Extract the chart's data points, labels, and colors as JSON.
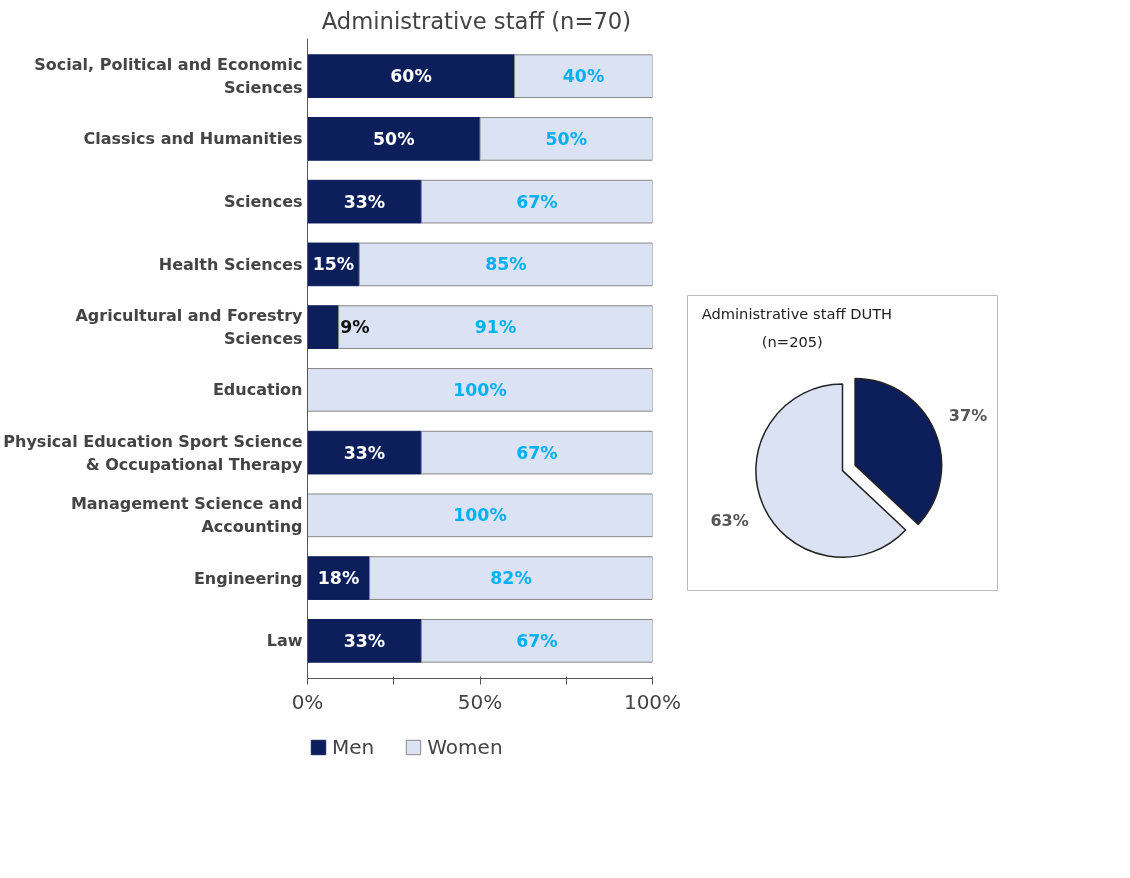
{
  "chart_data": [
    {
      "type": "bar",
      "title": "Administrative staff  (n=70)",
      "orientation": "horizontal",
      "stacked": true,
      "categories": [
        "Social, Political and Economic Sciences",
        "Classics and Humanities",
        "Sciences",
        "Health Sciences",
        "Agricultural and Forestry Sciences",
        "Education",
        "Physical Education Sport Science & Occupational Therapy",
        "Management Science and Accounting",
        "Engineering",
        "Law"
      ],
      "series": [
        {
          "name": "Men",
          "color": "#0c1f5b",
          "values": [
            60,
            50,
            33,
            15,
            9,
            0,
            33,
            0,
            18,
            33
          ],
          "value_labels": [
            "60%",
            "50%",
            "33%",
            "15%",
            "9%",
            null,
            "33%",
            null,
            "18%",
            "33%"
          ]
        },
        {
          "name": "Women",
          "color": "#dbe2f3",
          "values": [
            40,
            50,
            67,
            85,
            91,
            100,
            67,
            100,
            82,
            67
          ],
          "value_labels": [
            "40%",
            "50%",
            "67%",
            "85%",
            "91%",
            "100%",
            "67%",
            "100%",
            "82%",
            "67%"
          ]
        }
      ],
      "xlim": [
        0,
        100
      ],
      "xticks": [
        {
          "value": 0,
          "label": "0%"
        },
        {
          "value": 25,
          "label": null
        },
        {
          "value": 50,
          "label": "50%"
        },
        {
          "value": 75,
          "label": null
        },
        {
          "value": 100,
          "label": "100%"
        }
      ],
      "grid": false,
      "legend": "bottom left"
    },
    {
      "type": "pie",
      "title": "Administrative staff DUTH\n(n=205)",
      "categories": [
        null,
        null
      ],
      "values": [
        37,
        63
      ],
      "colors": [
        "#0c1f5b",
        "#dbe2f3"
      ],
      "value_labels": [
        "37%",
        "63%"
      ]
    }
  ]
}
